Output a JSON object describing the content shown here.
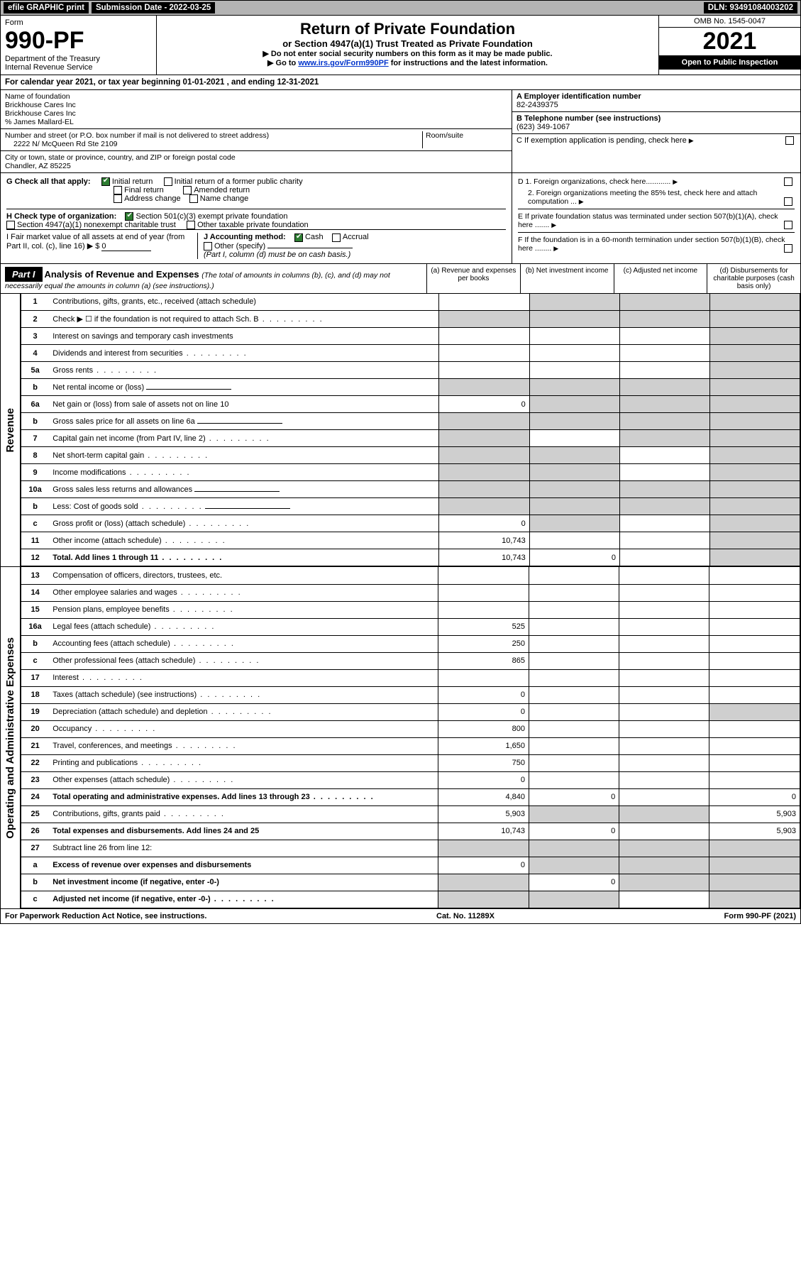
{
  "topbar": {
    "efile": "efile GRAPHIC print",
    "sub_label": "Submission Date - 2022-03-25",
    "dln": "DLN: 93491084003202"
  },
  "header": {
    "form_word": "Form",
    "form_no": "990-PF",
    "dept": "Department of the Treasury\nInternal Revenue Service",
    "title": "Return of Private Foundation",
    "subtitle": "or Section 4947(a)(1) Trust Treated as Private Foundation",
    "note1": "▶ Do not enter social security numbers on this form as it may be made public.",
    "note2_a": "▶ Go to ",
    "note2_link": "www.irs.gov/Form990PF",
    "note2_b": " for instructions and the latest information.",
    "omb": "OMB No. 1545-0047",
    "year": "2021",
    "inspect": "Open to Public Inspection"
  },
  "cal": "For calendar year 2021, or tax year beginning 01-01-2021                           , and ending 12-31-2021",
  "id": {
    "name_label": "Name of foundation",
    "name1": "Brickhouse Cares Inc",
    "name2": "Brickhouse Cares Inc",
    "care": "% James Mallard-EL",
    "addr_label": "Number and street (or P.O. box number if mail is not delivered to street address)",
    "room_label": "Room/suite",
    "addr": "2222 N/ McQueen Rd Ste 2109",
    "city_label": "City or town, state or province, country, and ZIP or foreign postal code",
    "city": "Chandler, AZ  85225",
    "a_label": "A Employer identification number",
    "a_val": "82-2439375",
    "b_label": "B Telephone number (see instructions)",
    "b_val": "(623) 349-1067",
    "c_label": "C If exemption application is pending, check here"
  },
  "g": {
    "label": "G Check all that apply:",
    "opts": [
      "Initial return",
      "Initial return of a former public charity",
      "Final return",
      "Amended return",
      "Address change",
      "Name change"
    ],
    "checked": [
      true,
      false,
      false,
      false,
      false,
      false
    ]
  },
  "h": {
    "label": "H Check type of organization:",
    "o1": "Section 501(c)(3) exempt private foundation",
    "o2": "Section 4947(a)(1) nonexempt charitable trust",
    "o3": "Other taxable private foundation"
  },
  "i": {
    "label": "I Fair market value of all assets at end of year (from Part II, col. (c), line 16) ▶ $",
    "val": "0"
  },
  "j": {
    "label": "J Accounting method:",
    "o1": "Cash",
    "o2": "Accrual",
    "o3": "Other (specify)",
    "note": "(Part I, column (d) must be on cash basis.)"
  },
  "right": {
    "d1": "D 1. Foreign organizations, check here............",
    "d2": "2. Foreign organizations meeting the 85% test, check here and attach computation ...",
    "e": "E  If private foundation status was terminated under section 507(b)(1)(A), check here .......",
    "f": "F  If the foundation is in a 60-month termination under section 507(b)(1)(B), check here ........"
  },
  "part1": {
    "tag": "Part I",
    "title": "Analysis of Revenue and Expenses ",
    "sub": "(The total of amounts in columns (b), (c), and (d) may not necessarily equal the amounts in column (a) (see instructions).)",
    "col_a": "(a)   Revenue and expenses per books",
    "col_b": "(b)   Net investment income",
    "col_c": "(c)   Adjusted net income",
    "col_d": "(d)  Disbursements for charitable purposes (cash basis only)"
  },
  "rev_label": "Revenue",
  "exp_label": "Operating and Administrative Expenses",
  "rows": [
    {
      "n": "1",
      "t": "Contributions, gifts, grants, etc., received (attach schedule)",
      "a": "",
      "b": "s",
      "c": "s",
      "d": "s"
    },
    {
      "n": "2",
      "t": "Check ▶ ☐ if the foundation is not required to attach Sch. B",
      "dots": true,
      "a": "s",
      "b": "s",
      "c": "s",
      "d": "s"
    },
    {
      "n": "3",
      "t": "Interest on savings and temporary cash investments",
      "a": "",
      "b": "",
      "c": "",
      "d": "s"
    },
    {
      "n": "4",
      "t": "Dividends and interest from securities",
      "dots": true,
      "a": "",
      "b": "",
      "c": "",
      "d": "s"
    },
    {
      "n": "5a",
      "t": "Gross rents",
      "dots": true,
      "a": "",
      "b": "",
      "c": "",
      "d": "s"
    },
    {
      "n": "b",
      "t": "Net rental income or (loss)",
      "inline": true,
      "a": "s",
      "b": "s",
      "c": "s",
      "d": "s"
    },
    {
      "n": "6a",
      "t": "Net gain or (loss) from sale of assets not on line 10",
      "a": "0",
      "b": "s",
      "c": "s",
      "d": "s"
    },
    {
      "n": "b",
      "t": "Gross sales price for all assets on line 6a",
      "inline": true,
      "a": "s",
      "b": "s",
      "c": "s",
      "d": "s"
    },
    {
      "n": "7",
      "t": "Capital gain net income (from Part IV, line 2)",
      "dots": true,
      "a": "s",
      "b": "",
      "c": "s",
      "d": "s"
    },
    {
      "n": "8",
      "t": "Net short-term capital gain",
      "dots": true,
      "a": "s",
      "b": "s",
      "c": "",
      "d": "s"
    },
    {
      "n": "9",
      "t": "Income modifications",
      "dots": true,
      "a": "s",
      "b": "s",
      "c": "",
      "d": "s"
    },
    {
      "n": "10a",
      "t": "Gross sales less returns and allowances",
      "inline": true,
      "a": "s",
      "b": "s",
      "c": "s",
      "d": "s"
    },
    {
      "n": "b",
      "t": "Less: Cost of goods sold",
      "dots": true,
      "inline": true,
      "a": "s",
      "b": "s",
      "c": "s",
      "d": "s"
    },
    {
      "n": "c",
      "t": "Gross profit or (loss) (attach schedule)",
      "dots": true,
      "a": "0",
      "b": "s",
      "c": "",
      "d": "s"
    },
    {
      "n": "11",
      "t": "Other income (attach schedule)",
      "dots": true,
      "a": "10,743",
      "b": "",
      "c": "",
      "d": "s"
    },
    {
      "n": "12",
      "t": "Total. Add lines 1 through 11",
      "dots": true,
      "bold": true,
      "a": "10,743",
      "b": "0",
      "c": "",
      "d": "s"
    }
  ],
  "exp_rows": [
    {
      "n": "13",
      "t": "Compensation of officers, directors, trustees, etc.",
      "a": "",
      "b": "",
      "c": "",
      "d": ""
    },
    {
      "n": "14",
      "t": "Other employee salaries and wages",
      "dots": true,
      "a": "",
      "b": "",
      "c": "",
      "d": ""
    },
    {
      "n": "15",
      "t": "Pension plans, employee benefits",
      "dots": true,
      "a": "",
      "b": "",
      "c": "",
      "d": ""
    },
    {
      "n": "16a",
      "t": "Legal fees (attach schedule)",
      "dots": true,
      "a": "525",
      "b": "",
      "c": "",
      "d": ""
    },
    {
      "n": "b",
      "t": "Accounting fees (attach schedule)",
      "dots": true,
      "a": "250",
      "b": "",
      "c": "",
      "d": ""
    },
    {
      "n": "c",
      "t": "Other professional fees (attach schedule)",
      "dots": true,
      "a": "865",
      "b": "",
      "c": "",
      "d": ""
    },
    {
      "n": "17",
      "t": "Interest",
      "dots": true,
      "a": "",
      "b": "",
      "c": "",
      "d": ""
    },
    {
      "n": "18",
      "t": "Taxes (attach schedule) (see instructions)",
      "dots": true,
      "a": "0",
      "b": "",
      "c": "",
      "d": ""
    },
    {
      "n": "19",
      "t": "Depreciation (attach schedule) and depletion",
      "dots": true,
      "a": "0",
      "b": "",
      "c": "",
      "d": "s"
    },
    {
      "n": "20",
      "t": "Occupancy",
      "dots": true,
      "a": "800",
      "b": "",
      "c": "",
      "d": ""
    },
    {
      "n": "21",
      "t": "Travel, conferences, and meetings",
      "dots": true,
      "a": "1,650",
      "b": "",
      "c": "",
      "d": ""
    },
    {
      "n": "22",
      "t": "Printing and publications",
      "dots": true,
      "a": "750",
      "b": "",
      "c": "",
      "d": ""
    },
    {
      "n": "23",
      "t": "Other expenses (attach schedule)",
      "dots": true,
      "a": "0",
      "b": "",
      "c": "",
      "d": ""
    },
    {
      "n": "24",
      "t": "Total operating and administrative expenses. Add lines 13 through 23",
      "dots": true,
      "bold": true,
      "a": "4,840",
      "b": "0",
      "c": "",
      "d": "0"
    },
    {
      "n": "25",
      "t": "Contributions, gifts, grants paid",
      "dots": true,
      "a": "5,903",
      "b": "s",
      "c": "s",
      "d": "5,903"
    },
    {
      "n": "26",
      "t": "Total expenses and disbursements. Add lines 24 and 25",
      "bold": true,
      "a": "10,743",
      "b": "0",
      "c": "",
      "d": "5,903"
    },
    {
      "n": "27",
      "t": "Subtract line 26 from line 12:",
      "a": "s",
      "b": "s",
      "c": "s",
      "d": "s"
    },
    {
      "n": "a",
      "t": "Excess of revenue over expenses and disbursements",
      "bold": true,
      "a": "0",
      "b": "s",
      "c": "s",
      "d": "s"
    },
    {
      "n": "b",
      "t": "Net investment income (if negative, enter -0-)",
      "bold": true,
      "a": "s",
      "b": "0",
      "c": "s",
      "d": "s"
    },
    {
      "n": "c",
      "t": "Adjusted net income (if negative, enter -0-)",
      "dots": true,
      "bold": true,
      "a": "s",
      "b": "s",
      "c": "",
      "d": "s"
    }
  ],
  "footer": {
    "left": "For Paperwork Reduction Act Notice, see instructions.",
    "mid": "Cat. No. 11289X",
    "right": "Form 990-PF (2021)"
  }
}
